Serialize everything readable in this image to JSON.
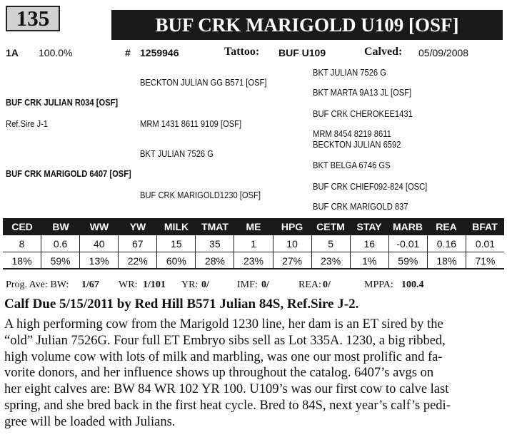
{
  "header": {
    "lot_number": "135",
    "title": "BUF CRK MARIGOLD U109 [OSF]"
  },
  "info": {
    "class": "1A",
    "percent": "100.0%",
    "reg_label": "#",
    "reg_number": "1259946",
    "tattoo_label": "Tattoo:",
    "tattoo": "BUF U109",
    "calved_label": "Calved:",
    "calved": "05/09/2008"
  },
  "pedigree": {
    "sire": "BUF CRK JULIAN R034 [OSF]",
    "ref_sire": "Ref.Sire J-1",
    "dam": "BUF CRK MARIGOLD 6407 [OSF]",
    "ss": "BECKTON JULIAN GG B571 [OSF]",
    "sd": "MRM 1431 8611 9109  [OSF]",
    "ds": "BKT JULIAN 7526 G",
    "dd": "BUF CRK MARIGOLD1230 [OSF]",
    "sss": "BKT JULIAN 7526 G",
    "ssd": "BKT MARTA 9A13 JL [OSF]",
    "sds": "BUF CRK CHEROKEE1431",
    "sdd": "MRM 8454 8219 8611",
    "dss": "BECKTON JULIAN 6592",
    "dsd": "BKT BELGA 6746 GS",
    "dds": "BUF CRK CHIEF092-824 [OSC]",
    "ddd": "BUF CRK MARIGOLD 837"
  },
  "epd": {
    "headers": [
      "CED",
      "BW",
      "WW",
      "YW",
      "MILK",
      "TMAT",
      "ME",
      "HPG",
      "CETM",
      "STAY",
      "MARB",
      "REA",
      "BFAT"
    ],
    "values": [
      "8",
      "0.6",
      "40",
      "67",
      "15",
      "35",
      "1",
      "10",
      "5",
      "16",
      "-0.01",
      "0.16",
      "0.01"
    ],
    "percentiles": [
      "18%",
      "59%",
      "13%",
      "22%",
      "60%",
      "28%",
      "23%",
      "27%",
      "23%",
      "1%",
      "59%",
      "18%",
      "71%"
    ]
  },
  "prog": {
    "bw_label": "Prog. Ave: BW:",
    "bw": "1/67",
    "wr_label": "WR:",
    "wr": "1/101",
    "yr_label": "YR:",
    "yr": "0/",
    "imf_label": "IMF:",
    "imf": "0/",
    "rea_label": "REA:",
    "rea": "0/",
    "mppa_label": "MPPA:",
    "mppa": "100.4"
  },
  "calf_due": "Calf Due 5/15/2011 by Red Hill B571 Julian 84S, Ref.Sire J-2.",
  "description_lines": [
    "A high performing cow from the Marigold 1230 line, her dam is an ET sired by the",
    "“old” Julian 7526G. Four full ET Embryo sibs sell as Lot 335A. 1230, a big ribbed,",
    "high volume cow with lots of milk and marbling, was one our most prolific and fa-",
    "vorite donors, and her influence shows up throughout the catalog. 6407’s avgs on",
    "her eight calves are: BW 84 WR 102 YR 100. U109’s was our first cow to calve last",
    "spring, and she bred back in the first heat cycle. Bred to 84S, next year’s calf’s pedi-",
    "gree will be loaded with Julians."
  ]
}
